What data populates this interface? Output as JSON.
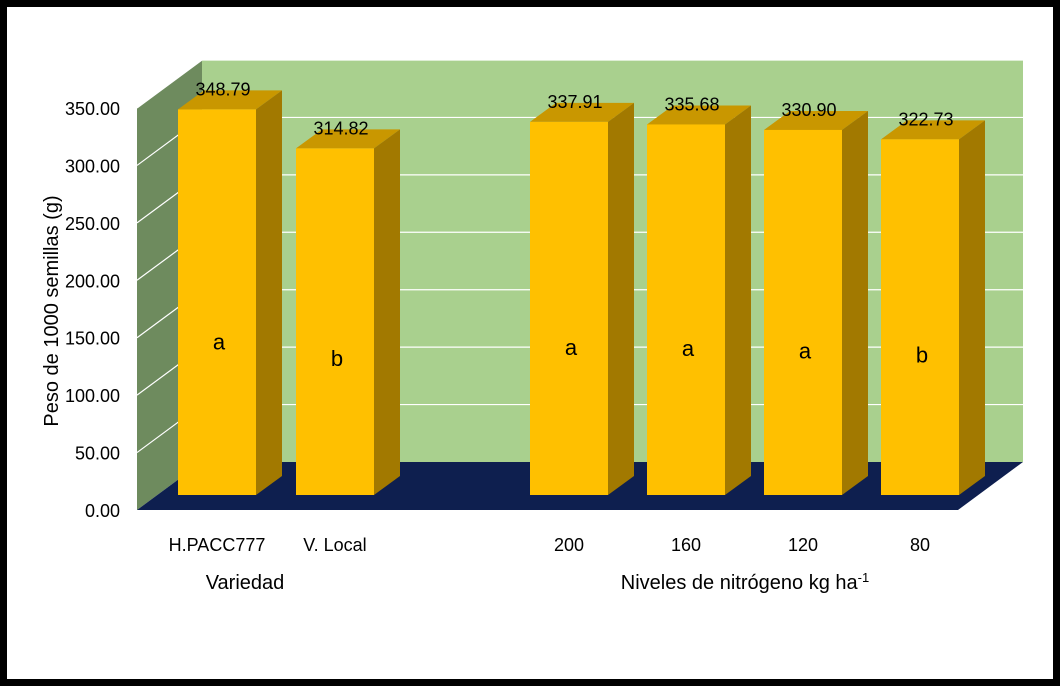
{
  "chart_data": {
    "type": "bar",
    "title": "",
    "ylabel": "Peso de 1000 semillas (g)",
    "ylim": [
      0,
      350
    ],
    "yticks": [
      "0.00",
      "50.00",
      "100.00",
      "150.00",
      "200.00",
      "250.00",
      "300.00",
      "350.00"
    ],
    "grid": true,
    "legend": "none",
    "groups": [
      {
        "label": "Variedad",
        "label_sup": "",
        "categories": [
          "H.PACC777",
          "V. Local"
        ],
        "values": [
          348.79,
          314.82
        ],
        "value_labels": [
          "348.79",
          "314.82"
        ],
        "letters": [
          "a",
          "b"
        ]
      },
      {
        "label": "Niveles de nitrógeno kg ha",
        "label_sup": "-1",
        "categories": [
          "200",
          "160",
          "120",
          "80"
        ],
        "values": [
          337.91,
          335.68,
          330.9,
          322.73
        ],
        "value_labels": [
          "337.91",
          "335.68",
          "330.90",
          "322.73"
        ],
        "letters": [
          "a",
          "a",
          "a",
          "b"
        ]
      }
    ],
    "colors": {
      "bar_front": "#FFC000",
      "bar_side": "#A27900",
      "bar_top": "#C99700",
      "back_wall": "#A9D08E",
      "side_wall": "#6E8B5E",
      "floor": "#0E1F4F",
      "gridline": "#ffffff"
    }
  }
}
